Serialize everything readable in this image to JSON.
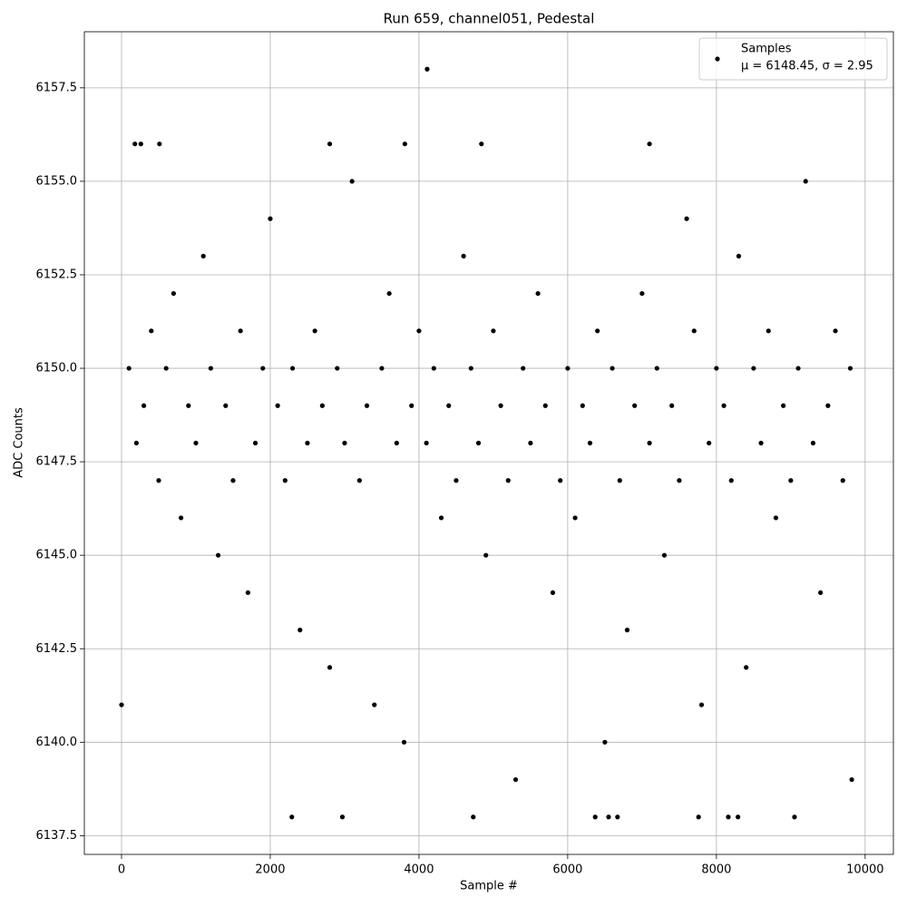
{
  "chart_data": {
    "type": "scatter",
    "title": "Run 659, channel051, Pedestal",
    "x_label": "Sample #",
    "y_label": "ADC Counts",
    "xlim": [
      -500,
      10380
    ],
    "ylim": [
      6137,
      6159
    ],
    "xticks": [
      0,
      2000,
      4000,
      6000,
      8000,
      10000
    ],
    "yticks": [
      6137.5,
      {
        "value": 6140,
        "label": "6140.0"
      },
      6142.5,
      {
        "value": 6145,
        "label": "6145.0"
      },
      6147.5,
      {
        "value": 6150,
        "label": "6150.0"
      },
      6152.5,
      {
        "value": 6155,
        "label": "6155.0"
      },
      6157.5
    ],
    "grid": true,
    "legend": "upper right",
    "legend_note": "μ = 6148.45, σ = 2.95",
    "series": [
      {
        "name": "Samples",
        "color": "#000000",
        "x": [
          0,
          100,
          200,
          300,
          400,
          500,
          600,
          700,
          800,
          900,
          1000,
          1100,
          1200,
          1300,
          1400,
          1500,
          1600,
          1700,
          1800,
          1900,
          2000,
          2100,
          2200,
          2300,
          2400,
          2500,
          2600,
          2700,
          2800,
          2900,
          3000,
          3100,
          3200,
          3300,
          3400,
          3500,
          3600,
          3700,
          3800,
          3900,
          4000,
          4100,
          4200,
          4300,
          4400,
          4500,
          4600,
          4700,
          4800,
          4900,
          5000,
          5100,
          5200,
          5300,
          5400,
          5500,
          5600,
          5700,
          5800,
          5900,
          6000,
          6100,
          6200,
          6300,
          6400,
          6500,
          6600,
          6700,
          6800,
          6900,
          7000,
          7100,
          7200,
          7300,
          7400,
          7500,
          7600,
          7700,
          7800,
          7900,
          8000,
          8100,
          8200,
          8300,
          8400,
          8500,
          8600,
          8700,
          8800,
          8900,
          9000,
          9100,
          9200,
          9300,
          9400,
          9500,
          9600,
          9700,
          9800,
          4110,
          2290,
          2970,
          4730,
          6370,
          6550,
          6670,
          7760,
          8160,
          8290,
          9050,
          180,
          260,
          510,
          2800,
          3810,
          4840,
          7100,
          9820
        ],
        "values": [
          6141,
          6150,
          6148,
          6149,
          6151,
          6147,
          6150,
          6152,
          6146,
          6149,
          6148,
          6153,
          6150,
          6145,
          6149,
          6147,
          6151,
          6144,
          6148,
          6150,
          6154,
          6149,
          6147,
          6150,
          6143,
          6148,
          6151,
          6149,
          6142,
          6150,
          6148,
          6155,
          6147,
          6149,
          6141,
          6150,
          6152,
          6148,
          6140,
          6149,
          6151,
          6148,
          6150,
          6146,
          6149,
          6147,
          6153,
          6150,
          6148,
          6145,
          6151,
          6149,
          6147,
          6139,
          6150,
          6148,
          6152,
          6149,
          6144,
          6147,
          6150,
          6146,
          6149,
          6148,
          6151,
          6140,
          6150,
          6147,
          6143,
          6149,
          6152,
          6148,
          6150,
          6145,
          6149,
          6147,
          6154,
          6151,
          6141,
          6148,
          6150,
          6149,
          6147,
          6153,
          6142,
          6150,
          6148,
          6151,
          6146,
          6149,
          6147,
          6150,
          6155,
          6148,
          6144,
          6149,
          6151,
          6147,
          6150,
          6158,
          6138,
          6138,
          6138,
          6138,
          6138,
          6138,
          6138,
          6138,
          6138,
          6138,
          6156,
          6156,
          6156,
          6156,
          6156,
          6156,
          6156,
          6139
        ]
      }
    ]
  }
}
